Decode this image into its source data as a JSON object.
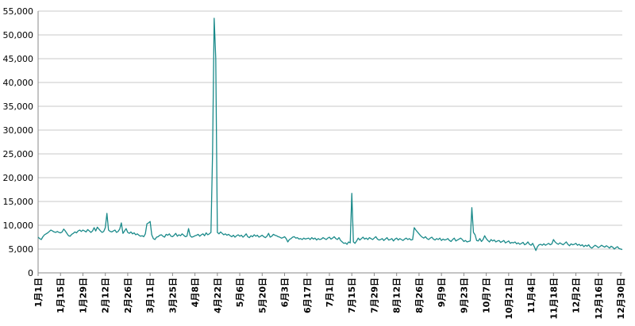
{
  "chart_data": {
    "type": "line",
    "categories": [
      "1月1日",
      null,
      null,
      null,
      null,
      null,
      null,
      null,
      null,
      null,
      null,
      null,
      null,
      null,
      "1月15日",
      null,
      null,
      null,
      null,
      null,
      null,
      null,
      null,
      null,
      null,
      null,
      null,
      null,
      "1月29日",
      null,
      null,
      null,
      null,
      null,
      null,
      null,
      null,
      null,
      null,
      null,
      null,
      null,
      "2月12日",
      null,
      null,
      null,
      null,
      null,
      null,
      null,
      null,
      null,
      null,
      null,
      null,
      null,
      "2月26日",
      null,
      null,
      null,
      null,
      null,
      null,
      null,
      null,
      null,
      null,
      null,
      null,
      null,
      "3月11日",
      null,
      null,
      null,
      null,
      null,
      null,
      null,
      null,
      null,
      null,
      null,
      null,
      null,
      "3月25日",
      null,
      null,
      null,
      null,
      null,
      null,
      null,
      null,
      null,
      null,
      null,
      null,
      null,
      "4月8日",
      null,
      null,
      null,
      null,
      null,
      null,
      null,
      null,
      null,
      null,
      null,
      null,
      null,
      "4月22日",
      null,
      null,
      null,
      null,
      null,
      null,
      null,
      null,
      null,
      null,
      null,
      null,
      null,
      "5月6日",
      null,
      null,
      null,
      null,
      null,
      null,
      null,
      null,
      null,
      null,
      null,
      null,
      null,
      "5月20日",
      null,
      null,
      null,
      null,
      null,
      null,
      null,
      null,
      null,
      null,
      null,
      null,
      null,
      "6月3日",
      null,
      null,
      null,
      null,
      null,
      null,
      null,
      null,
      null,
      null,
      null,
      null,
      null,
      "6月17日",
      null,
      null,
      null,
      null,
      null,
      null,
      null,
      null,
      null,
      null,
      null,
      null,
      null,
      "7月1日",
      null,
      null,
      null,
      null,
      null,
      null,
      null,
      null,
      null,
      null,
      null,
      null,
      null,
      "7月15日",
      null,
      null,
      null,
      null,
      null,
      null,
      null,
      null,
      null,
      null,
      null,
      null,
      null,
      "7月29日",
      null,
      null,
      null,
      null,
      null,
      null,
      null,
      null,
      null,
      null,
      null,
      null,
      null,
      "8月12日",
      null,
      null,
      null,
      null,
      null,
      null,
      null,
      null,
      null,
      null,
      null,
      null,
      null,
      "8月26日",
      null,
      null,
      null,
      null,
      null,
      null,
      null,
      null,
      null,
      null,
      null,
      null,
      null,
      "9月9日",
      null,
      null,
      null,
      null,
      null,
      null,
      null,
      null,
      null,
      null,
      null,
      null,
      null,
      "9月23日",
      null,
      null,
      null,
      null,
      null,
      null,
      null,
      null,
      null,
      null,
      null,
      null,
      null,
      "10月7日",
      null,
      null,
      null,
      null,
      null,
      null,
      null,
      null,
      null,
      null,
      null,
      null,
      null,
      "10月21日",
      null,
      null,
      null,
      null,
      null,
      null,
      null,
      null,
      null,
      null,
      null,
      null,
      null,
      "11月4日",
      null,
      null,
      null,
      null,
      null,
      null,
      null,
      null,
      null,
      null,
      null,
      null,
      null,
      "11月18日",
      null,
      null,
      null,
      null,
      null,
      null,
      null,
      null,
      null,
      null,
      null,
      null,
      null,
      "12月2日",
      null,
      null,
      null,
      null,
      null,
      null,
      null,
      null,
      null,
      null,
      null,
      null,
      null,
      "12月16日",
      null,
      null,
      null,
      null,
      null,
      null,
      null,
      null,
      null,
      null,
      null,
      null,
      null,
      "12月30日",
      null
    ],
    "values": [
      7500,
      7200,
      7000,
      7600,
      8000,
      8200,
      8400,
      8700,
      9000,
      8800,
      8600,
      8500,
      8700,
      8500,
      8400,
      8600,
      9200,
      8800,
      8300,
      7800,
      7700,
      8100,
      8300,
      8600,
      8400,
      8800,
      9000,
      8700,
      9000,
      8800,
      8600,
      9100,
      8800,
      8500,
      8800,
      9500,
      8800,
      9600,
      9200,
      8800,
      8500,
      8700,
      9500,
      12500,
      9000,
      8700,
      8600,
      8800,
      9000,
      8500,
      8700,
      9200,
      10500,
      8300,
      8800,
      9300,
      8500,
      8300,
      8600,
      8200,
      8400,
      8000,
      8200,
      7900,
      7700,
      7800,
      7600,
      8200,
      10300,
      10500,
      10800,
      8000,
      7200,
      7000,
      7500,
      7600,
      7900,
      8000,
      7700,
      7500,
      8100,
      7900,
      8200,
      7700,
      7600,
      7900,
      8300,
      7700,
      8000,
      7800,
      8200,
      7900,
      7600,
      7700,
      9300,
      7800,
      7500,
      7600,
      7800,
      7900,
      8100,
      7700,
      8000,
      8200,
      7800,
      8400,
      8000,
      8200,
      8500,
      25000,
      53500,
      45000,
      8500,
      8200,
      8600,
      8300,
      8000,
      8200,
      7900,
      8100,
      7800,
      7600,
      7900,
      7500,
      7800,
      8000,
      7700,
      7900,
      7500,
      7800,
      8200,
      7600,
      7400,
      7800,
      7600,
      8000,
      7700,
      7900,
      7500,
      7700,
      7900,
      7600,
      7400,
      7700,
      8300,
      7500,
      7700,
      8100,
      7900,
      7800,
      7600,
      7500,
      7300,
      7400,
      7600,
      7200,
      6500,
      7000,
      7200,
      7500,
      7600,
      7300,
      7400,
      7100,
      7200,
      7000,
      7300,
      7100,
      7200,
      7300,
      7000,
      7400,
      7100,
      7300,
      6900,
      7200,
      7000,
      7100,
      7400,
      7200,
      7000,
      7300,
      7500,
      7100,
      7300,
      7600,
      7200,
      7000,
      7400,
      6800,
      6500,
      6200,
      6300,
      6000,
      6500,
      6300,
      16700,
      6500,
      6200,
      6700,
      7300,
      6900,
      7200,
      7500,
      7100,
      7300,
      7000,
      7400,
      7200,
      7000,
      7300,
      7600,
      7100,
      6900,
      7000,
      7200,
      6800,
      7100,
      7400,
      6900,
      7000,
      7200,
      6700,
      7100,
      7300,
      6900,
      7200,
      7000,
      6800,
      7100,
      7300,
      7000,
      7200,
      6900,
      7000,
      9500,
      9000,
      8600,
      8200,
      7800,
      7500,
      7300,
      7600,
      7200,
      7000,
      7300,
      7500,
      7100,
      6900,
      7200,
      7000,
      7300,
      6800,
      7100,
      6900,
      7000,
      7200,
      6800,
      6600,
      7000,
      7300,
      6700,
      6900,
      7100,
      7300,
      7000,
      6600,
      6800,
      6500,
      6600,
      6700,
      13700,
      8500,
      8000,
      6800,
      6700,
      7200,
      6600,
      7000,
      7800,
      7200,
      6800,
      6500,
      7000,
      6700,
      6900,
      6500,
      6700,
      6800,
      6400,
      6600,
      6800,
      6300,
      6500,
      6700,
      6200,
      6400,
      6300,
      6500,
      6100,
      6300,
      6000,
      6200,
      6400,
      5900,
      6100,
      6500,
      6000,
      5800,
      6200,
      5500,
      4700,
      5500,
      5900,
      6000,
      5800,
      6100,
      5800,
      6000,
      6200,
      5900,
      6100,
      7000,
      6500,
      6200,
      6000,
      6300,
      6100,
      5900,
      6200,
      6500,
      6000,
      5700,
      6100,
      5900,
      6000,
      6200,
      5800,
      6000,
      5700,
      5900,
      5500,
      5800,
      5600,
      5900,
      5400,
      5200,
      5500,
      5800,
      5600,
      5300,
      5500,
      5800,
      5600,
      5400,
      5700,
      5500,
      5200,
      5600,
      5400,
      5000,
      5300,
      5500,
      5100,
      5000,
      4900
    ],
    "color": "#1a8a8a",
    "ylim": [
      0,
      55000
    ],
    "yticks": [
      0,
      {
        "value": 5000,
        "label": "5,000"
      },
      {
        "value": 10000,
        "label": "10,000"
      },
      {
        "value": 15000,
        "label": "15,000"
      },
      {
        "value": 20000,
        "label": "20,000"
      },
      {
        "value": 25000,
        "label": "25,000"
      },
      {
        "value": 30000,
        "label": "30,000"
      },
      {
        "value": 35000,
        "label": "35,000"
      },
      {
        "value": 40000,
        "label": "40,000"
      },
      {
        "value": 45000,
        "label": "45,000"
      },
      {
        "value": 50000,
        "label": "50,000"
      },
      {
        "value": 55000,
        "label": "55,000"
      }
    ],
    "grid": true
  }
}
